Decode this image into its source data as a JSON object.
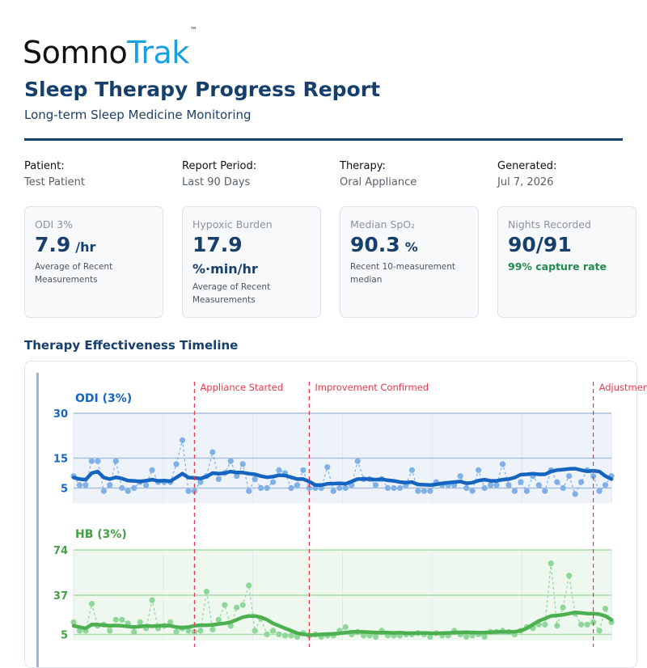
{
  "brand": {
    "part1": "Somno",
    "part2": "Trak",
    "tm": "™"
  },
  "report": {
    "title": "Sleep Therapy Progress Report",
    "subtitle": "Long-term Sleep Medicine Monitoring"
  },
  "meta": [
    {
      "label": "Patient:",
      "value": "Test Patient"
    },
    {
      "label": "Report Period:",
      "value": "Last 90 Days"
    },
    {
      "label": "Therapy:",
      "value": "Oral Appliance"
    },
    {
      "label": "Generated:",
      "value": "Jul 7, 2026"
    }
  ],
  "cards": [
    {
      "label": "ODI 3%",
      "value": "7.9",
      "unit": "/hr",
      "note": "Average of Recent Measurements"
    },
    {
      "label": "Hypoxic Burden",
      "value": "17.9",
      "unit": "%·min/hr",
      "note": "Average of Recent Measurements"
    },
    {
      "label": "Median SpO₂",
      "value": "90.3",
      "unit": "%",
      "note": "Recent 10-measurement median"
    },
    {
      "label": "Nights Recorded",
      "value": "90/91",
      "note": "99% capture rate"
    }
  ],
  "section_title": "Therapy Effectiveness Timeline",
  "colors": {
    "odi": "#1565c0",
    "odi_light": "#7fb0e6",
    "hb": "#4caf50",
    "hb_light": "#8fd69a",
    "event": "#e53950",
    "navy": "#173f6b"
  },
  "chart_data": {
    "type": "line",
    "x": [
      1,
      2,
      3,
      4,
      5,
      6,
      7,
      8,
      9,
      10,
      11,
      12,
      13,
      14,
      15,
      16,
      17,
      18,
      19,
      20,
      21,
      22,
      23,
      24,
      25,
      26,
      27,
      28,
      29,
      30,
      31,
      32,
      33,
      34,
      35,
      36,
      37,
      38,
      39,
      40,
      41,
      42,
      43,
      44,
      45,
      46,
      47,
      48,
      49,
      50,
      51,
      52,
      53,
      54,
      55,
      56,
      57,
      58,
      59,
      60,
      61,
      62,
      63,
      64,
      65,
      66,
      67,
      68,
      69,
      70,
      71,
      72,
      73,
      74,
      75,
      76,
      77,
      78,
      79,
      80,
      81,
      82,
      83,
      84,
      85,
      86,
      87,
      88,
      89,
      90
    ],
    "events": [
      {
        "x": 21,
        "label": "Appliance Started"
      },
      {
        "x": 40,
        "label": "Improvement Confirmed"
      },
      {
        "x": 87,
        "label": "Adjustment Recommended"
      }
    ],
    "panels": [
      {
        "label": "ODI (3%)",
        "yticks": [
          5,
          15,
          30
        ],
        "ylim": [
          0,
          30
        ],
        "series": [
          {
            "values": [
              9,
              6,
              6,
              14,
              14,
              4,
              6,
              14,
              5,
              4,
              5,
              7,
              6,
              11,
              7,
              7,
              7,
              13,
              21,
              4,
              4,
              7,
              9,
              17,
              8,
              10,
              14,
              9,
              13,
              4,
              8,
              5,
              5,
              7,
              11,
              10,
              5,
              6,
              11,
              5,
              5,
              5,
              12,
              4,
              5,
              5,
              6,
              14,
              8,
              8,
              6,
              8,
              5,
              5,
              5,
              6,
              11,
              4,
              4,
              4,
              7,
              6,
              6,
              6,
              9,
              5,
              4,
              11,
              5,
              6,
              6,
              13,
              6,
              4,
              7,
              4,
              9,
              6,
              4,
              11,
              7,
              5,
              9,
              3,
              7,
              11,
              9,
              4,
              6,
              9
            ]
          },
          {
            "values": [
              8.5,
              8,
              7.8,
              10,
              10.5,
              8.5,
              8,
              8.6,
              8.2,
              7.5,
              7.4,
              7.2,
              7.5,
              7.8,
              7.4,
              7.5,
              7.3,
              8.5,
              9.8,
              8.5,
              8.4,
              8.2,
              8.8,
              10,
              9.8,
              10,
              10.5,
              10.2,
              10.2,
              9.8,
              9.6,
              9,
              8.6,
              8.8,
              9.3,
              9.2,
              8.6,
              8,
              8,
              7.2,
              6,
              6,
              6.4,
              6.5,
              6.6,
              6.4,
              7.2,
              8,
              8,
              8,
              7.8,
              8,
              7.6,
              7.4,
              7,
              6.8,
              7,
              6.2,
              6.1,
              6,
              6.2,
              6.6,
              6.8,
              7,
              7.2,
              6.6,
              6.8,
              7.5,
              7.8,
              7.4,
              7.4,
              7.8,
              8,
              8.5,
              9.5,
              9.6,
              9.8,
              9.6,
              9.6,
              10.5,
              11,
              11.2,
              11.4,
              11.5,
              11,
              10.6,
              10.8,
              10.5,
              9,
              8
            ]
          }
        ]
      },
      {
        "label": "HB (3%)",
        "yticks": [
          5,
          37,
          74
        ],
        "ylim": [
          0,
          74
        ],
        "series": [
          {
            "values": [
              15,
              8,
              8,
              30,
              12,
              13,
              8,
              17,
              17,
              14,
              7,
              15,
              10,
              33,
              10,
              12,
              15,
              7,
              10,
              8,
              7,
              8,
              40,
              9,
              17,
              29,
              12,
              27,
              29,
              45,
              8,
              18,
              5,
              8,
              5,
              4,
              4,
              3,
              6,
              4,
              5,
              3,
              4,
              4,
              8,
              11,
              5,
              7,
              4,
              4,
              3,
              8,
              4,
              4,
              4,
              5,
              5,
              6,
              5,
              3,
              6,
              4,
              4,
              8,
              5,
              3,
              4,
              5,
              3,
              7,
              7,
              8,
              7,
              5,
              8,
              11,
              10,
              13,
              13,
              63,
              12,
              27,
              53,
              22,
              13,
              13,
              15,
              8,
              26,
              15
            ]
          },
          {
            "values": [
              12,
              11,
              10,
              13,
              13,
              12.5,
              12,
              12.3,
              12,
              11.5,
              11,
              11.5,
              12,
              11.6,
              12,
              12.2,
              12,
              11,
              10.5,
              11,
              12,
              12.5,
              12.5,
              12.8,
              13.5,
              14,
              15,
              17,
              19,
              20,
              20,
              19,
              17,
              14,
              12,
              10,
              8,
              6,
              5,
              4.5,
              4.5,
              5,
              5.2,
              5.5,
              5.8,
              6.5,
              7,
              7.2,
              7,
              6.8,
              6.5,
              6.5,
              6.5,
              6.2,
              6.5,
              6,
              6,
              6,
              6.2,
              6,
              5.8,
              6,
              6.2,
              6.4,
              6.6,
              6.8,
              6.6,
              6.4,
              6.5,
              6.8,
              7,
              7,
              7,
              7.2,
              8,
              10,
              13,
              16,
              18,
              20,
              20.5,
              21,
              22,
              23,
              22.5,
              22,
              22,
              21.5,
              20,
              17
            ]
          }
        ]
      }
    ]
  }
}
